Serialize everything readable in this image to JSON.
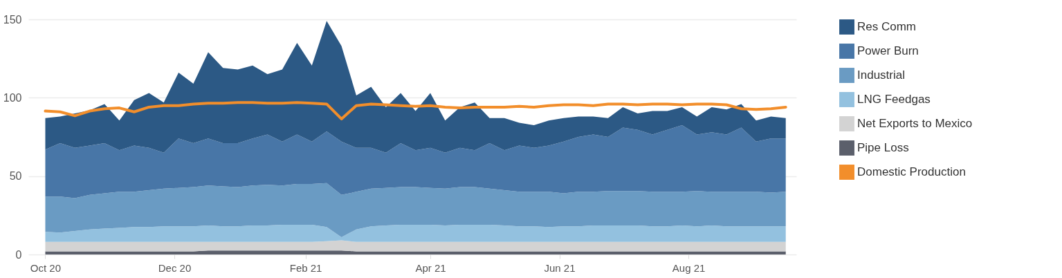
{
  "chart_data": {
    "type": "area",
    "stacked": true,
    "grid": "y",
    "legend": "right",
    "x": [
      "2020-10-01",
      "2020-10-08",
      "2020-10-15",
      "2020-10-22",
      "2020-10-29",
      "2020-11-05",
      "2020-11-12",
      "2020-11-19",
      "2020-11-26",
      "2020-12-03",
      "2020-12-10",
      "2020-12-17",
      "2020-12-24",
      "2020-12-31",
      "2021-01-07",
      "2021-01-14",
      "2021-01-21",
      "2021-01-28",
      "2021-02-04",
      "2021-02-11",
      "2021-02-18",
      "2021-02-25",
      "2021-03-04",
      "2021-03-11",
      "2021-03-18",
      "2021-03-25",
      "2021-04-01",
      "2021-04-08",
      "2021-04-15",
      "2021-04-22",
      "2021-04-29",
      "2021-05-06",
      "2021-05-13",
      "2021-05-20",
      "2021-05-27",
      "2021-06-03",
      "2021-06-10",
      "2021-06-17",
      "2021-06-24",
      "2021-07-01",
      "2021-07-08",
      "2021-07-15",
      "2021-07-22",
      "2021-07-29",
      "2021-08-05",
      "2021-08-12",
      "2021-08-19",
      "2021-08-26",
      "2021-09-02",
      "2021-09-09",
      "2021-09-16"
    ],
    "xlim": [
      "2020-09-23",
      "2021-09-21"
    ],
    "xticks": [
      {
        "value": "2020-10-01",
        "label": "Oct 20"
      },
      {
        "value": "2020-12-01",
        "label": "Dec 20"
      },
      {
        "value": "2021-02-01",
        "label": "Feb 21"
      },
      {
        "value": "2021-04-01",
        "label": "Apr 21"
      },
      {
        "value": "2021-06-01",
        "label": "Jun 21"
      },
      {
        "value": "2021-08-01",
        "label": "Aug 21"
      }
    ],
    "ylim": [
      0,
      150
    ],
    "yticks": [
      0,
      50,
      100,
      150
    ],
    "series": [
      {
        "name": "Pipe Loss",
        "color": "#5b5f6b",
        "values": [
          2,
          2,
          2,
          2,
          2,
          2,
          2,
          2,
          2,
          2,
          2,
          2.5,
          2.5,
          2.5,
          2.5,
          2.5,
          2.5,
          2.5,
          2.5,
          2.5,
          2.5,
          2,
          2,
          2,
          2,
          2,
          2,
          2,
          2,
          2,
          2,
          2,
          2,
          2,
          2,
          2,
          2,
          2,
          2,
          2,
          2,
          2,
          2,
          2,
          2,
          2,
          2,
          2,
          2,
          2,
          2
        ]
      },
      {
        "name": "Net Exports to Mexico",
        "color": "#d3d3d3",
        "values": [
          6,
          6,
          6,
          6,
          6,
          6,
          6,
          6,
          6,
          6,
          6,
          5.5,
          5.5,
          5.5,
          5.5,
          5.5,
          5.5,
          5.5,
          5.5,
          6,
          6.5,
          6,
          6,
          6,
          6,
          6,
          6,
          6,
          6,
          6,
          6,
          6,
          6,
          6,
          6,
          6,
          6,
          6,
          6,
          6,
          6,
          6,
          6,
          6,
          6,
          6,
          6,
          6,
          6,
          6,
          6
        ]
      },
      {
        "name": "LNG Feedgas",
        "color": "#93c1df",
        "values": [
          6.5,
          6,
          7,
          8,
          8.5,
          9,
          9.5,
          9.5,
          10,
          10,
          10,
          10.5,
          10,
          10,
          10.5,
          10.5,
          11,
          11,
          11,
          9,
          2,
          8,
          10,
          10.5,
          11,
          11,
          11,
          10.5,
          11,
          11,
          11,
          10.5,
          10,
          10,
          9.5,
          10,
          10,
          10.5,
          10.5,
          10.5,
          10.5,
          10,
          10,
          10.5,
          10,
          10.5,
          10,
          10,
          10,
          10,
          10
        ]
      },
      {
        "name": "Industrial",
        "color": "#6a9bc3",
        "values": [
          22.5,
          23,
          21,
          22,
          22.5,
          23,
          22.5,
          23.5,
          24,
          24.5,
          25,
          25.5,
          25.5,
          25,
          25.5,
          26,
          25,
          26,
          26,
          28,
          27,
          24,
          24,
          24,
          24,
          24,
          23.5,
          23.5,
          24,
          24,
          23,
          22.5,
          22,
          22,
          22.5,
          21,
          22,
          21.5,
          22,
          22,
          22,
          22,
          22,
          21.5,
          22.5,
          21.5,
          22,
          22,
          22,
          21.5,
          22
        ]
      },
      {
        "name": "Power Burn",
        "color": "#4876a7",
        "values": [
          30,
          34,
          32,
          31.5,
          32,
          26.5,
          29.5,
          27,
          23,
          31.5,
          28,
          30,
          27.5,
          28,
          30,
          32,
          28,
          31.5,
          27,
          33,
          34,
          28,
          26,
          22.5,
          28,
          23.5,
          25.5,
          23,
          25,
          23.5,
          29,
          25.5,
          29.5,
          28,
          29.5,
          33,
          35,
          36.5,
          34.5,
          40.5,
          39,
          36.5,
          39.5,
          42.5,
          36,
          38,
          36.5,
          41,
          32,
          34.5,
          34
        ]
      },
      {
        "name": "Res Comm",
        "color": "#2c5985",
        "values": [
          20,
          17,
          22,
          22.5,
          25,
          19,
          29,
          35,
          32,
          42,
          38,
          55,
          48,
          47,
          46.5,
          38.5,
          46,
          58.5,
          48.5,
          70.5,
          61,
          33.5,
          39,
          29,
          32,
          25,
          35,
          20.5,
          26,
          30.5,
          16,
          20.5,
          14.5,
          14.5,
          16,
          15,
          13,
          11.5,
          12,
          13,
          10.5,
          15,
          12,
          11.5,
          11.5,
          16,
          16,
          15,
          13.5,
          14,
          13
        ]
      },
      {
        "name": "Domestic Production",
        "type": "line",
        "color": "#f28e2b",
        "values": [
          91.5,
          91,
          88.5,
          91.5,
          93,
          93.5,
          91,
          94,
          95,
          95,
          96,
          96.5,
          96.5,
          97,
          97,
          96.5,
          96.5,
          97,
          96.5,
          96,
          86.5,
          95,
          96,
          95.5,
          95,
          94.5,
          95,
          94,
          93.5,
          94,
          94,
          94,
          94.5,
          94,
          95,
          95.5,
          95.5,
          95,
          96,
          96,
          95.5,
          96,
          96,
          95.5,
          96,
          96,
          95.5,
          93,
          92.5,
          93,
          94
        ]
      }
    ]
  }
}
